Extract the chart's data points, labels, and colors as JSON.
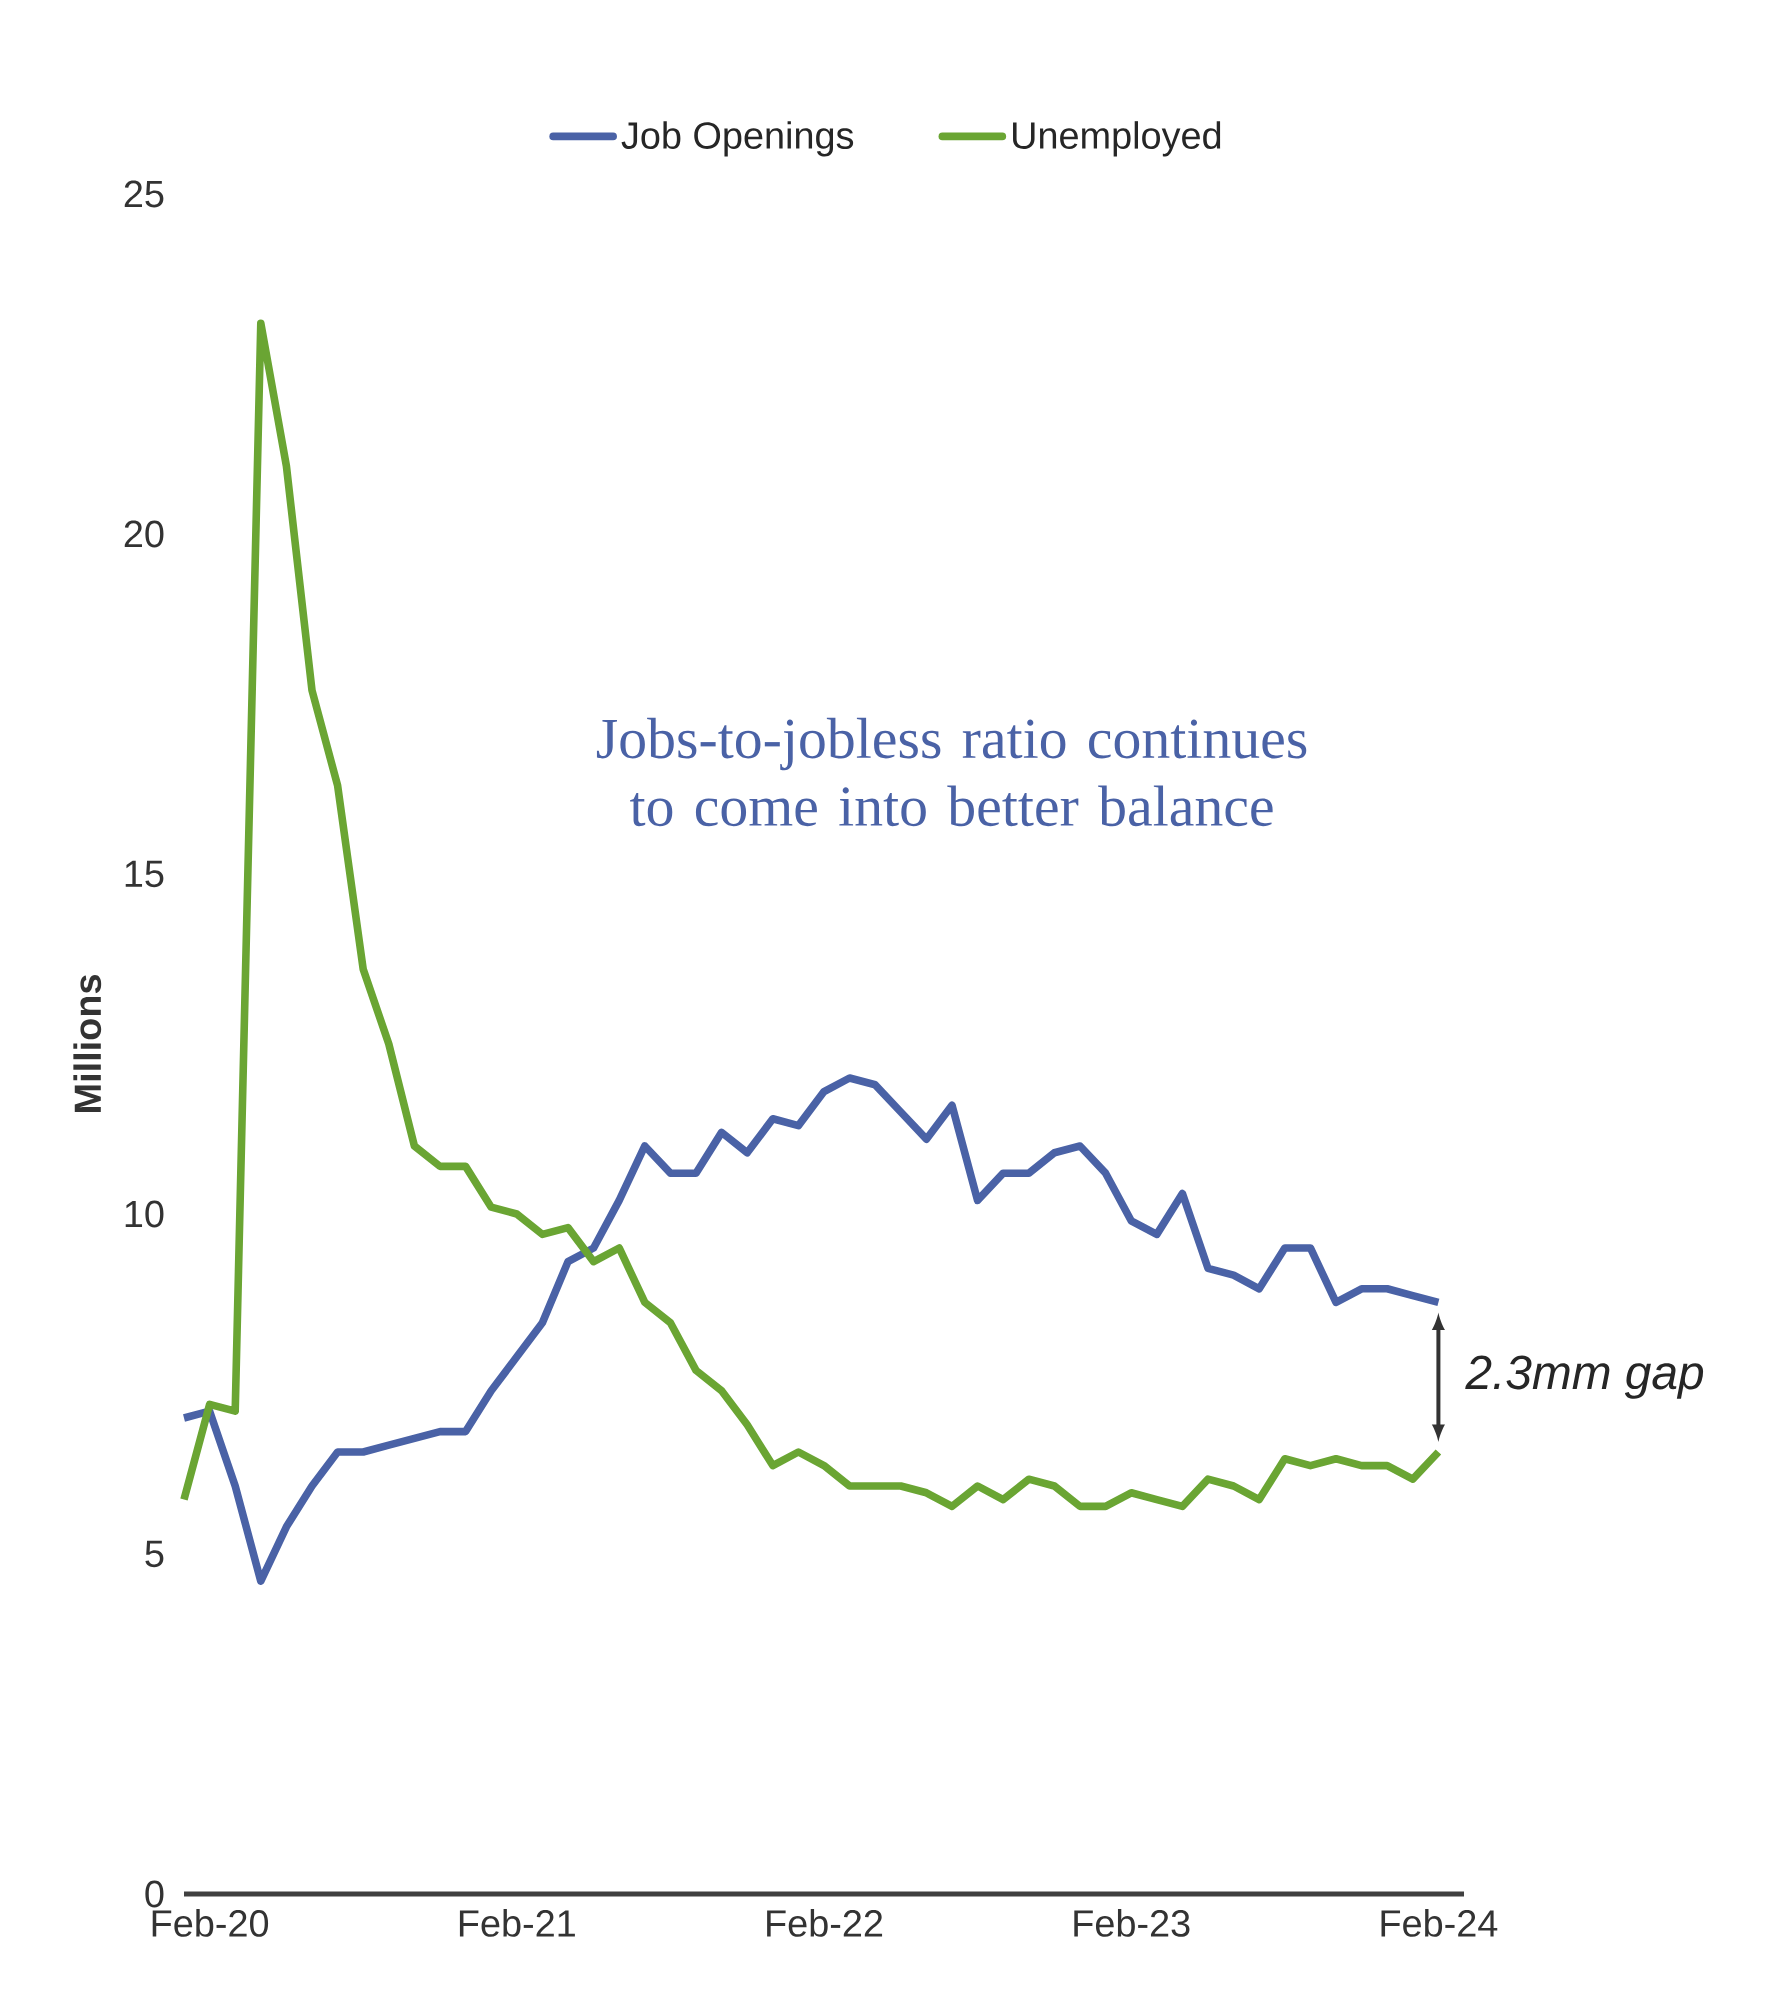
{
  "chart_data": {
    "type": "line",
    "ylabel": "Millions",
    "x": [
      "2020-01",
      "2020-02",
      "2020-03",
      "2020-04",
      "2020-05",
      "2020-06",
      "2020-07",
      "2020-08",
      "2020-09",
      "2020-10",
      "2020-11",
      "2020-12",
      "2021-01",
      "2021-02",
      "2021-03",
      "2021-04",
      "2021-05",
      "2021-06",
      "2021-07",
      "2021-08",
      "2021-09",
      "2021-10",
      "2021-11",
      "2021-12",
      "2022-01",
      "2022-02",
      "2022-03",
      "2022-04",
      "2022-05",
      "2022-06",
      "2022-07",
      "2022-08",
      "2022-09",
      "2022-10",
      "2022-11",
      "2022-12",
      "2023-01",
      "2023-02",
      "2023-03",
      "2023-04",
      "2023-05",
      "2023-06",
      "2023-07",
      "2023-08",
      "2023-09",
      "2023-10",
      "2023-11",
      "2023-12",
      "2024-01",
      "2024-02"
    ],
    "series": [
      {
        "name": "Job Openings",
        "color": "#4a62a6",
        "values": [
          7.0,
          7.1,
          6.0,
          4.6,
          5.4,
          6.0,
          6.5,
          6.5,
          6.6,
          6.7,
          6.8,
          6.8,
          7.4,
          7.9,
          8.4,
          9.3,
          9.5,
          10.2,
          11.0,
          10.6,
          10.6,
          11.2,
          10.9,
          11.4,
          11.3,
          11.8,
          12.0,
          11.9,
          11.5,
          11.1,
          11.6,
          10.2,
          10.6,
          10.6,
          10.9,
          11.0,
          10.6,
          9.9,
          9.7,
          10.3,
          9.2,
          9.1,
          8.9,
          9.5,
          9.5,
          8.7,
          8.9,
          8.9,
          8.8,
          8.7
        ]
      },
      {
        "name": "Unemployed",
        "color": "#6aa533",
        "values": [
          5.8,
          7.2,
          7.1,
          23.1,
          21.0,
          17.7,
          16.3,
          13.6,
          12.5,
          11.0,
          10.7,
          10.7,
          10.1,
          10.0,
          9.7,
          9.8,
          9.3,
          9.5,
          8.7,
          8.4,
          7.7,
          7.4,
          6.9,
          6.3,
          6.5,
          6.3,
          6.0,
          6.0,
          6.0,
          5.9,
          5.7,
          6.0,
          5.8,
          6.1,
          6.0,
          5.7,
          5.7,
          5.9,
          5.8,
          5.7,
          6.1,
          6.0,
          5.8,
          6.4,
          6.3,
          6.4,
          6.3,
          6.3,
          6.1,
          6.5
        ]
      }
    ],
    "xlim": [
      "2020-01",
      "2024-03"
    ],
    "xticks": [
      {
        "value": "2020-02",
        "label": "Feb-20"
      },
      {
        "value": "2021-02",
        "label": "Feb-21"
      },
      {
        "value": "2022-02",
        "label": "Feb-22"
      },
      {
        "value": "2023-02",
        "label": "Feb-23"
      },
      {
        "value": "2024-02",
        "label": "Feb-24"
      }
    ],
    "ylim": [
      0,
      25
    ],
    "yticks": [
      0,
      5,
      10,
      15,
      20,
      25
    ],
    "legend": "top",
    "annotations": [
      "Jobs-to-jobless ratio continues to come into better balance",
      "2.3mm gap"
    ]
  }
}
